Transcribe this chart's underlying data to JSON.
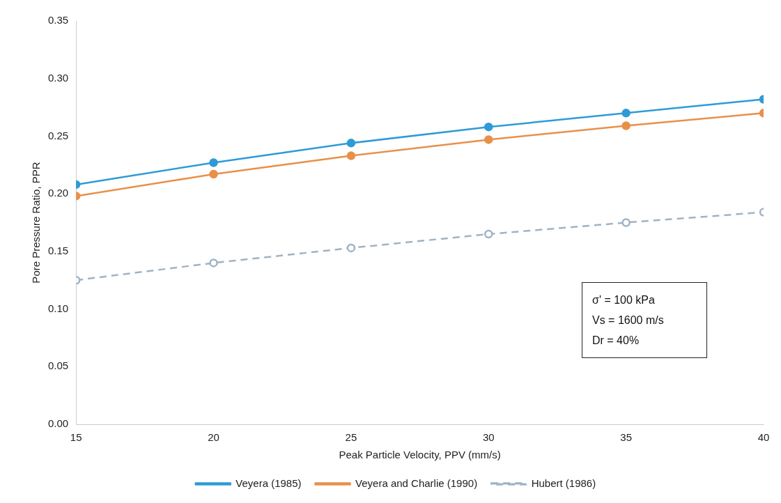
{
  "chart_data": {
    "type": "line",
    "xlabel": "Peak Particle Velocity, PPV (mm/s)",
    "ylabel": "Pore Pressure Ratio, PPR",
    "x": [
      15,
      20,
      25,
      30,
      35,
      40
    ],
    "xlim": [
      15,
      40
    ],
    "xticks": [
      15,
      20,
      25,
      30,
      35,
      40
    ],
    "ylim": [
      0,
      0.35
    ],
    "yticks": [
      {
        "value": 0,
        "label": "0.00"
      },
      {
        "value": 0.05,
        "label": "0.05"
      },
      {
        "value": 0.1,
        "label": "0.10"
      },
      {
        "value": 0.15,
        "label": "0.15"
      },
      {
        "value": 0.2,
        "label": "0.20"
      },
      {
        "value": 0.25,
        "label": "0.25"
      },
      {
        "value": 0.3,
        "label": "0.30"
      },
      {
        "value": 0.35,
        "label": "0.35"
      }
    ],
    "series": [
      {
        "name": "Veyera (1985)",
        "color": "#2e9bd6",
        "values": [
          0.208,
          0.227,
          0.244,
          0.258,
          0.27,
          0.282
        ]
      },
      {
        "name": "Veyera and Charlie (1990)",
        "color": "#e8904a",
        "values": [
          0.198,
          0.217,
          0.233,
          0.247,
          0.259,
          0.27
        ]
      },
      {
        "name": "Hubert (1986)",
        "color": "#9fb3c4",
        "line_style": "dashed",
        "values": [
          0.125,
          0.14,
          0.153,
          0.165,
          0.175,
          0.184
        ]
      }
    ],
    "annotations": [
      "σ' = 100 kPa",
      "Vs = 1600 m/s",
      "Dr = 40%"
    ],
    "marker": "circle",
    "grid": false,
    "legend": "bottom"
  }
}
